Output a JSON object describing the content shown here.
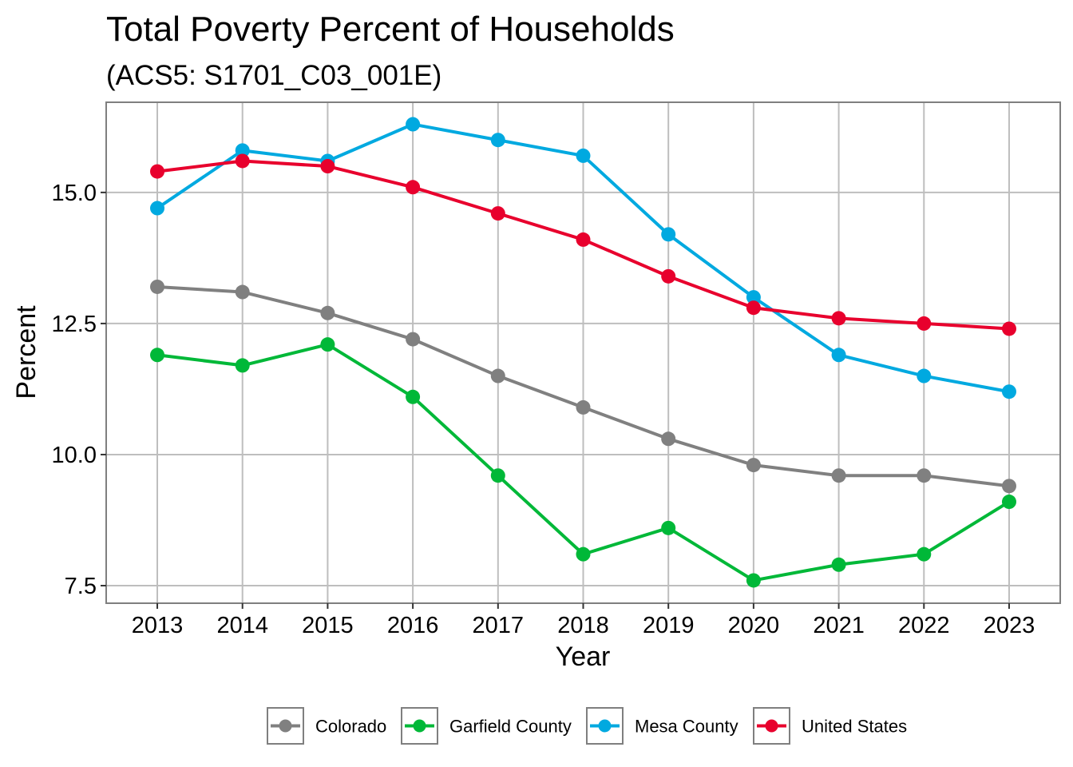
{
  "chart_data": {
    "type": "line",
    "title": "Total Poverty Percent of Households",
    "subtitle": "(ACS5: S1701_C03_001E)",
    "xlabel": "Year",
    "ylabel": "Percent",
    "x": [
      2013,
      2014,
      2015,
      2016,
      2017,
      2018,
      2019,
      2020,
      2021,
      2022,
      2023
    ],
    "x_tick_labels": [
      "2013",
      "2014",
      "2015",
      "2016",
      "2017",
      "2018",
      "2019",
      "2020",
      "2021",
      "2022",
      "2023"
    ],
    "y_ticks": [
      7.5,
      10.0,
      12.5,
      15.0
    ],
    "y_tick_labels": [
      "7.5",
      "10.0",
      "12.5",
      "15.0"
    ],
    "xlim": [
      2012.4,
      2023.6
    ],
    "ylim": [
      7.165,
      16.72
    ],
    "grid": true,
    "legend_position": "bottom",
    "series": [
      {
        "name": "Colorado",
        "color": "#808080",
        "values": [
          13.2,
          13.1,
          12.7,
          12.2,
          11.5,
          10.9,
          10.3,
          9.8,
          9.6,
          9.6,
          9.4
        ]
      },
      {
        "name": "Garfield County",
        "color": "#00B838",
        "values": [
          11.9,
          11.7,
          12.1,
          11.1,
          9.6,
          8.1,
          8.6,
          7.6,
          7.9,
          8.1,
          9.1
        ]
      },
      {
        "name": "Mesa County",
        "color": "#00A9E0",
        "values": [
          14.7,
          15.8,
          15.6,
          16.3,
          16.0,
          15.7,
          14.2,
          13.0,
          11.9,
          11.5,
          11.2
        ]
      },
      {
        "name": "United States",
        "color": "#E8002D",
        "values": [
          15.4,
          15.6,
          15.5,
          15.1,
          14.6,
          14.1,
          13.4,
          12.8,
          12.6,
          12.5,
          12.4
        ]
      }
    ]
  }
}
